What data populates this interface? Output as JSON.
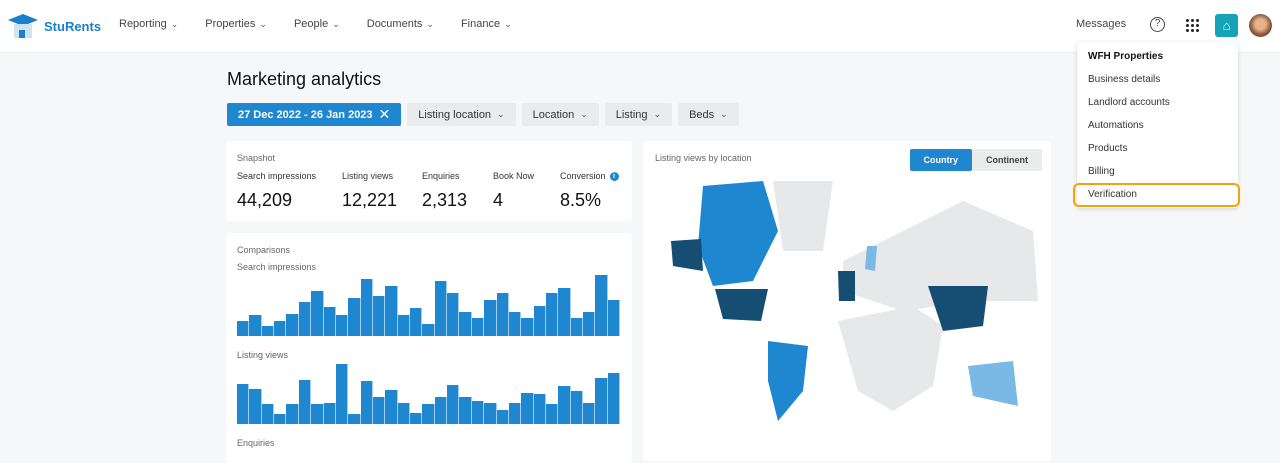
{
  "app": {
    "name": "StuRents"
  },
  "nav": [
    {
      "label": "Reporting"
    },
    {
      "label": "Properties"
    },
    {
      "label": "People"
    },
    {
      "label": "Documents"
    },
    {
      "label": "Finance"
    }
  ],
  "header": {
    "messages": "Messages",
    "icons": [
      "help-icon",
      "apps-grid-icon",
      "home-heart-icon",
      "avatar"
    ]
  },
  "page": {
    "title": "Marketing analytics"
  },
  "filters": {
    "date_range": "27 Dec 2022 - 26 Jan 2023",
    "items": [
      "Listing location",
      "Location",
      "Listing",
      "Beds"
    ]
  },
  "snapshot": {
    "title": "Snapshot",
    "stats": [
      {
        "label": "Search impressions",
        "value": "44,209"
      },
      {
        "label": "Listing views",
        "value": "12,221"
      },
      {
        "label": "Enquiries",
        "value": "2,313"
      },
      {
        "label": "Book Now",
        "value": "4"
      },
      {
        "label": "Conversion",
        "value": "8.5%"
      }
    ]
  },
  "comparisons": {
    "title": "Comparisons",
    "charts": [
      {
        "label": "Search impressions",
        "values": [
          43,
          61,
          28,
          43,
          63,
          98,
          130,
          85,
          61,
          111,
          165,
          116,
          145,
          61,
          83,
          35,
          160,
          125,
          71,
          53,
          106,
          125,
          71,
          53,
          88,
          125,
          141,
          53,
          71,
          178,
          106
        ]
      },
      {
        "label": "Listing views",
        "values": [
          118,
          103,
          58,
          30,
          58,
          128,
          58,
          60,
          175,
          28,
          125,
          78,
          100,
          60,
          32,
          58,
          78,
          115,
          78,
          67,
          60,
          40,
          60,
          90,
          88,
          58,
          110,
          97,
          60,
          135,
          148
        ]
      },
      {
        "label": "Enquiries",
        "values": []
      }
    ]
  },
  "map": {
    "title": "Listing views by location",
    "toggle": [
      "Country",
      "Continent"
    ],
    "selected": "Country",
    "colors": {
      "high": "#164d73",
      "mid": "#1f86d0",
      "low": "#7ab8e6",
      "none": "#e6e8ea"
    }
  },
  "menu": {
    "header": "WFH Properties",
    "items": [
      "Business details",
      "Landlord accounts",
      "Automations",
      "Products",
      "Billing",
      "Verification"
    ],
    "highlighted": "Verification"
  },
  "colors": {
    "accent": "#1f86d0",
    "highlight": "#f5a10b"
  }
}
